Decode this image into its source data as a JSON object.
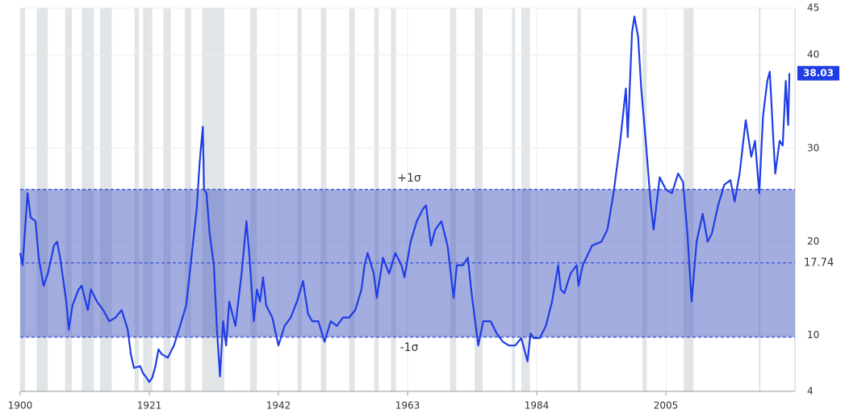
{
  "chart_data": {
    "type": "line",
    "xlim": [
      1900,
      2026
    ],
    "xticks": [
      1900,
      1921,
      1942,
      1963,
      1984,
      2005
    ],
    "ylim": [
      4,
      45
    ],
    "yticks": [
      4,
      10,
      20,
      30,
      40,
      45
    ],
    "grid": true,
    "recession_color": "#e1e5e8",
    "recessions": [
      [
        1900,
        1900.8
      ],
      [
        1902.7,
        1904.5
      ],
      [
        1907.3,
        1908.4
      ],
      [
        1910,
        1912
      ],
      [
        1913,
        1914.9
      ],
      [
        1918.6,
        1919.3
      ],
      [
        1920,
        1921.5
      ],
      [
        1923.3,
        1924.5
      ],
      [
        1926.8,
        1927.8
      ],
      [
        1929.6,
        1933.2
      ],
      [
        1937.4,
        1938.5
      ],
      [
        1945.1,
        1945.8
      ],
      [
        1948.9,
        1949.8
      ],
      [
        1953.5,
        1954.4
      ],
      [
        1957.6,
        1958.3
      ],
      [
        1960.3,
        1961.1
      ],
      [
        1969.9,
        1970.9
      ],
      [
        1973.9,
        1975.2
      ],
      [
        1980,
        1980.5
      ],
      [
        1981.5,
        1982.9
      ],
      [
        1990.6,
        1991.2
      ],
      [
        2001.2,
        2001.9
      ],
      [
        2007.9,
        2009.5
      ],
      [
        2020.1,
        2020.4
      ]
    ],
    "band": {
      "upper": 25.6,
      "lower": 9.8,
      "mean": 17.74,
      "upper_label": "+1σ",
      "lower_label": "-1σ",
      "color": "#4a5cc0",
      "line_color": "#2845d8"
    },
    "series": [
      {
        "color": "#1f3de6",
        "x": [
          1900,
          1900.4,
          1901.2,
          1901.7,
          1902.5,
          1903,
          1903.8,
          1904.5,
          1905.5,
          1906,
          1906.5,
          1907.5,
          1907.9,
          1908.5,
          1909.5,
          1910,
          1911,
          1911.5,
          1912.5,
          1913.5,
          1914.5,
          1915.5,
          1916.5,
          1917.5,
          1918,
          1918.5,
          1919.5,
          1920,
          1920.5,
          1921,
          1921.5,
          1922,
          1922.5,
          1923,
          1924,
          1925,
          1926,
          1927,
          1928,
          1928.7,
          1929.2,
          1929.7,
          1929.9,
          1930.3,
          1930.8,
          1931.5,
          1932,
          1932.5,
          1933,
          1933.5,
          1934,
          1935,
          1936,
          1936.8,
          1937.3,
          1938,
          1938.5,
          1939,
          1939.5,
          1940,
          1941,
          1942,
          1943,
          1944,
          1945,
          1946,
          1946.8,
          1947.5,
          1948.5,
          1949.5,
          1950.5,
          1951.5,
          1952.5,
          1953.5,
          1954.5,
          1955.5,
          1956,
          1956.5,
          1957.5,
          1958,
          1959,
          1960,
          1961,
          1962,
          1962.5,
          1963.5,
          1964.5,
          1965.5,
          1966,
          1966.8,
          1967.5,
          1968.5,
          1969.5,
          1970.5,
          1971,
          1972,
          1972.8,
          1973.5,
          1974.5,
          1975.3,
          1976.5,
          1977.5,
          1978.5,
          1979.5,
          1980.5,
          1981.5,
          1982.5,
          1983,
          1983.5,
          1984.5,
          1985.5,
          1986.5,
          1987.5,
          1987.9,
          1988.5,
          1989.5,
          1990.5,
          1990.8,
          1991.5,
          1993,
          1994.5,
          1995.5,
          1996.5,
          1997.5,
          1998.5,
          1998.8,
          1999.5,
          1999.9,
          2000.5,
          2001,
          2001.8,
          2002.5,
          2003,
          2004,
          2005,
          2006,
          2007,
          2007.8,
          2008.5,
          2009.2,
          2010,
          2011,
          2011.8,
          2012.5,
          2013.5,
          2014.5,
          2015.5,
          2016.2,
          2017,
          2018,
          2018.9,
          2019.5,
          2020.2,
          2020.8,
          2021.5,
          2021.9,
          2022.5,
          2022.8,
          2023.5,
          2024,
          2024.5,
          2024.9,
          2025.1
        ],
        "values": [
          18.8,
          17.5,
          25.2,
          22.6,
          22.2,
          18.3,
          15.3,
          16.6,
          19.6,
          20,
          18.3,
          13.6,
          10.6,
          13.2,
          14.9,
          15.3,
          12.7,
          14.9,
          13.6,
          12.7,
          11.5,
          11.9,
          12.7,
          10.6,
          8.0,
          6.5,
          6.7,
          5.9,
          5.5,
          5.0,
          5.5,
          6.7,
          8.5,
          8.0,
          7.6,
          8.9,
          11.0,
          13.2,
          19.2,
          23.5,
          28.6,
          32.3,
          25.6,
          25.2,
          20.9,
          17.5,
          10.6,
          5.6,
          11.5,
          8.9,
          13.6,
          11.0,
          16.6,
          22.2,
          18.3,
          11.5,
          14.9,
          13.6,
          16.2,
          13.2,
          11.9,
          8.9,
          11.0,
          11.9,
          13.6,
          15.8,
          12.3,
          11.5,
          11.5,
          9.3,
          11.5,
          11.0,
          11.9,
          11.9,
          12.7,
          14.9,
          17.5,
          18.8,
          16.6,
          14.0,
          18.3,
          16.6,
          18.8,
          17.5,
          16.2,
          20.0,
          22.2,
          23.5,
          23.9,
          19.6,
          21.3,
          22.2,
          19.6,
          14.0,
          17.5,
          17.5,
          18.3,
          14.0,
          8.9,
          11.5,
          11.5,
          10.2,
          9.3,
          8.9,
          8.9,
          9.7,
          7.2,
          10.2,
          9.7,
          9.7,
          11.0,
          13.6,
          17.5,
          14.9,
          14.5,
          16.6,
          17.5,
          15.3,
          17.5,
          19.6,
          20.0,
          21.3,
          25.2,
          30.3,
          36.4,
          31.2,
          42.4,
          44.1,
          41.9,
          36.4,
          30.3,
          24.3,
          21.3,
          26.9,
          25.6,
          25.2,
          27.3,
          26.4,
          20.9,
          13.6,
          20.0,
          23.0,
          20.0,
          20.9,
          23.9,
          26.1,
          26.6,
          24.3,
          27.3,
          33.0,
          29.1,
          30.8,
          25.2,
          33.4,
          37.2,
          38.2,
          30.8,
          27.3,
          30.8,
          30.3,
          37.2,
          32.5,
          38.03
        ]
      }
    ]
  }
}
